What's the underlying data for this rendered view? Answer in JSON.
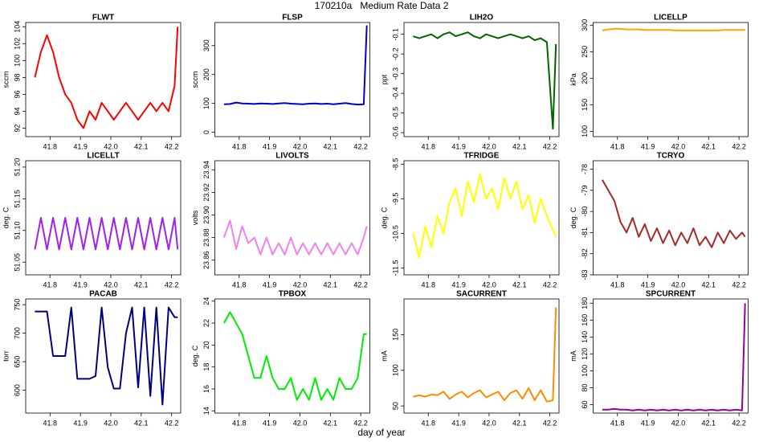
{
  "header": {
    "title": "170210a   Medium Rate Data 2"
  },
  "footer": {
    "xlabel": "day of year"
  },
  "chart_data": [
    {
      "type": "line",
      "title": "FLWT",
      "ylabel": "sccm",
      "color": "#ff0000",
      "x": [
        41.75,
        41.77,
        41.79,
        41.81,
        41.83,
        41.85,
        41.87,
        41.89,
        41.91,
        41.93,
        41.95,
        41.97,
        41.99,
        42.01,
        42.03,
        42.05,
        42.07,
        42.09,
        42.11,
        42.13,
        42.15,
        42.17,
        42.19,
        42.21,
        42.22
      ],
      "values": [
        98,
        101,
        103,
        101,
        98,
        96,
        95,
        93,
        92,
        94,
        93,
        95,
        94,
        93,
        94,
        95,
        94,
        93,
        94,
        95,
        94,
        95,
        94,
        97,
        104
      ],
      "xlim": [
        41.72,
        42.23
      ],
      "xticks": [
        41.8,
        41.9,
        {
          "value": 42,
          "label": "42.0"
        },
        42.1,
        42.2
      ],
      "ylim": [
        91,
        104.5
      ],
      "yticks": [
        92,
        94,
        96,
        98,
        100,
        102,
        104
      ]
    },
    {
      "type": "line",
      "title": "FLSP",
      "ylabel": "sccm",
      "color": "#0000cd",
      "x": [
        41.75,
        41.77,
        41.79,
        41.81,
        41.83,
        41.85,
        41.87,
        41.89,
        41.91,
        41.93,
        41.95,
        41.97,
        41.99,
        42.01,
        42.03,
        42.05,
        42.07,
        42.09,
        42.11,
        42.13,
        42.15,
        42.17,
        42.19,
        42.21,
        42.22
      ],
      "values": [
        97,
        98,
        103,
        100,
        99,
        98,
        100,
        99,
        98,
        100,
        101,
        99,
        98,
        97,
        99,
        100,
        98,
        99,
        97,
        99,
        101,
        98,
        96,
        97,
        370
      ],
      "xlim": [
        41.72,
        42.23
      ],
      "xticks": [
        41.8,
        41.9,
        {
          "value": 42,
          "label": "42.0"
        },
        42.1,
        42.2
      ],
      "ylim": [
        -15,
        380
      ],
      "yticks": [
        0,
        100,
        200,
        300
      ]
    },
    {
      "type": "line",
      "title": "LIH2O",
      "ylabel": "ppt",
      "color": "#006400",
      "x": [
        41.75,
        41.77,
        41.79,
        41.81,
        41.83,
        41.85,
        41.87,
        41.89,
        41.91,
        41.93,
        41.95,
        41.97,
        41.99,
        42.01,
        42.03,
        42.05,
        42.07,
        42.09,
        42.11,
        42.13,
        42.15,
        42.17,
        42.19,
        42.21,
        42.22
      ],
      "values": [
        -0.11,
        -0.12,
        -0.11,
        -0.1,
        -0.12,
        -0.1,
        -0.09,
        -0.11,
        -0.1,
        -0.09,
        -0.11,
        -0.12,
        -0.1,
        -0.11,
        -0.12,
        -0.11,
        -0.1,
        -0.11,
        -0.12,
        -0.11,
        -0.13,
        -0.12,
        -0.14,
        -0.58,
        -0.15
      ],
      "xlim": [
        41.72,
        42.23
      ],
      "xticks": [
        41.8,
        41.9,
        {
          "value": 42,
          "label": "42.0"
        },
        42.1,
        42.2
      ],
      "ylim": [
        -0.62,
        -0.04
      ],
      "yticks": [
        -0.1,
        -0.2,
        -0.3,
        -0.4,
        -0.5,
        -0.6
      ]
    },
    {
      "type": "line",
      "title": "LICELLP",
      "ylabel": "kPa",
      "color": "#ffa500",
      "x": [
        41.75,
        41.77,
        41.79,
        41.81,
        41.83,
        41.85,
        41.87,
        41.89,
        41.91,
        41.93,
        41.95,
        41.97,
        41.99,
        42.01,
        42.03,
        42.05,
        42.07,
        42.09,
        42.11,
        42.13,
        42.15,
        42.17,
        42.19,
        42.21,
        42.22
      ],
      "values": [
        290,
        292,
        293,
        293,
        292,
        292,
        292,
        291,
        291,
        291,
        291,
        291,
        290,
        290,
        290,
        290,
        290,
        290,
        290,
        290,
        291,
        291,
        291,
        291,
        291
      ],
      "xlim": [
        41.72,
        42.23
      ],
      "xticks": [
        41.8,
        41.9,
        {
          "value": 42,
          "label": "42.0"
        },
        42.1,
        42.2
      ],
      "ylim": [
        90,
        305
      ],
      "yticks": [
        100,
        150,
        200,
        250,
        300
      ]
    },
    {
      "type": "line",
      "title": "LICELLT",
      "ylabel": "deg. C",
      "color": "#a020f0",
      "x": [
        41.75,
        41.77,
        41.79,
        41.81,
        41.83,
        41.85,
        41.87,
        41.89,
        41.91,
        41.93,
        41.95,
        41.97,
        41.99,
        42.01,
        42.03,
        42.05,
        42.07,
        42.09,
        42.11,
        42.13,
        42.15,
        42.17,
        42.19,
        42.21,
        42.22
      ],
      "values": [
        51.07,
        51.12,
        51.07,
        51.12,
        51.07,
        51.12,
        51.07,
        51.12,
        51.07,
        51.12,
        51.07,
        51.12,
        51.07,
        51.12,
        51.07,
        51.12,
        51.07,
        51.12,
        51.07,
        51.12,
        51.07,
        51.12,
        51.07,
        51.12,
        51.07
      ],
      "xlim": [
        41.72,
        42.23
      ],
      "xticks": [
        41.8,
        41.9,
        {
          "value": 42,
          "label": "42.0"
        },
        42.1,
        42.2
      ],
      "ylim": [
        51.03,
        51.21
      ],
      "yticks": [
        {
          "value": 51.05,
          "label": "51.05"
        },
        {
          "value": 51.1,
          "label": "51.10"
        },
        {
          "value": 51.15,
          "label": "51.15"
        },
        {
          "value": 51.2,
          "label": "51.20"
        }
      ]
    },
    {
      "type": "line",
      "title": "LIVOLTS",
      "ylabel": "volts",
      "color": "#ee82ee",
      "x": [
        41.75,
        41.77,
        41.79,
        41.81,
        41.83,
        41.85,
        41.87,
        41.89,
        41.91,
        41.93,
        41.95,
        41.97,
        41.99,
        42.01,
        42.03,
        42.05,
        42.07,
        42.09,
        42.11,
        42.13,
        42.15,
        42.17,
        42.19,
        42.21,
        42.22
      ],
      "values": [
        23.88,
        23.895,
        23.87,
        23.89,
        23.875,
        23.88,
        23.865,
        23.88,
        23.865,
        23.875,
        23.865,
        23.88,
        23.865,
        23.875,
        23.865,
        23.875,
        23.865,
        23.875,
        23.865,
        23.875,
        23.865,
        23.875,
        23.865,
        23.88,
        23.89
      ],
      "xlim": [
        41.72,
        42.23
      ],
      "xticks": [
        41.8,
        41.9,
        {
          "value": 42,
          "label": "42.0"
        },
        42.1,
        42.2
      ],
      "ylim": [
        23.847,
        23.948
      ],
      "yticks": [
        23.86,
        23.88,
        {
          "value": 23.9,
          "label": "23.90"
        },
        23.92,
        23.94
      ]
    },
    {
      "type": "line",
      "title": "TFRIDGE",
      "ylabel": "deg. C",
      "color": "#ffff00",
      "x": [
        41.75,
        41.77,
        41.79,
        41.81,
        41.83,
        41.85,
        41.87,
        41.89,
        41.91,
        41.93,
        41.95,
        41.97,
        41.99,
        42.01,
        42.03,
        42.05,
        42.07,
        42.09,
        42.11,
        42.13,
        42.15,
        42.17,
        42.19,
        42.21,
        42.22
      ],
      "values": [
        -10.5,
        -11.2,
        -10.3,
        -10.9,
        -10.0,
        -10.5,
        -9.6,
        -9.2,
        -10.0,
        -9.0,
        -9.6,
        -8.8,
        -9.5,
        -9.2,
        -9.8,
        -8.9,
        -9.5,
        -9.0,
        -9.8,
        -9.4,
        -10.2,
        -9.5,
        -10.0,
        -10.4,
        -10.6
      ],
      "xlim": [
        41.72,
        42.23
      ],
      "xticks": [
        41.8,
        41.9,
        {
          "value": 42,
          "label": "42.0"
        },
        42.1,
        42.2
      ],
      "ylim": [
        -11.7,
        -8.4
      ],
      "yticks": [
        -8.5,
        -9.5,
        -10.5,
        -11.5
      ]
    },
    {
      "type": "line",
      "title": "TCRYO",
      "ylabel": "deg. C",
      "color": "#a52a2a",
      "x": [
        41.75,
        41.77,
        41.79,
        41.81,
        41.83,
        41.85,
        41.87,
        41.89,
        41.91,
        41.93,
        41.95,
        41.97,
        41.99,
        42.01,
        42.03,
        42.05,
        42.07,
        42.09,
        42.11,
        42.13,
        42.15,
        42.17,
        42.19,
        42.21,
        42.22
      ],
      "values": [
        -78.5,
        -79.0,
        -79.5,
        -80.5,
        -81.0,
        -80.3,
        -81.2,
        -80.6,
        -81.4,
        -80.8,
        -81.5,
        -80.9,
        -81.6,
        -81.0,
        -81.5,
        -80.8,
        -81.6,
        -81.2,
        -81.7,
        -81.0,
        -81.5,
        -80.9,
        -81.3,
        -81.0,
        -81.2
      ],
      "xlim": [
        41.72,
        42.23
      ],
      "xticks": [
        41.8,
        41.9,
        {
          "value": 42,
          "label": "42.0"
        },
        42.1,
        42.2
      ],
      "ylim": [
        -83,
        -77.6
      ],
      "yticks": [
        -78,
        -79,
        -80,
        -81,
        -82,
        -83
      ]
    },
    {
      "type": "line",
      "title": "PACAB",
      "ylabel": "torr",
      "color": "#000080",
      "x": [
        41.75,
        41.77,
        41.79,
        41.81,
        41.83,
        41.85,
        41.87,
        41.89,
        41.91,
        41.93,
        41.95,
        41.97,
        41.99,
        42.01,
        42.03,
        42.05,
        42.07,
        42.09,
        42.11,
        42.13,
        42.15,
        42.17,
        42.19,
        42.21,
        42.22
      ],
      "values": [
        738,
        738,
        738,
        660,
        660,
        660,
        745,
        620,
        620,
        620,
        625,
        745,
        640,
        603,
        603,
        700,
        745,
        605,
        745,
        590,
        745,
        575,
        745,
        728,
        728
      ],
      "xlim": [
        41.72,
        42.23
      ],
      "xticks": [
        41.8,
        41.9,
        {
          "value": 42,
          "label": "42.0"
        },
        42.1,
        42.2
      ],
      "ylim": [
        560,
        760
      ],
      "yticks": [
        600,
        650,
        700,
        750
      ]
    },
    {
      "type": "line",
      "title": "TPBOX",
      "ylabel": "deg. C",
      "color": "#00ee00",
      "x": [
        41.75,
        41.77,
        41.79,
        41.81,
        41.83,
        41.85,
        41.87,
        41.89,
        41.91,
        41.93,
        41.95,
        41.97,
        41.99,
        42.01,
        42.03,
        42.05,
        42.07,
        42.09,
        42.11,
        42.13,
        42.15,
        42.17,
        42.19,
        42.21,
        42.22
      ],
      "values": [
        22,
        23,
        22,
        21,
        19,
        17,
        17,
        19,
        17,
        16,
        16,
        17,
        15,
        16,
        15,
        17,
        15,
        16,
        15,
        17,
        16,
        16,
        17,
        21,
        21
      ],
      "xlim": [
        41.72,
        42.23
      ],
      "xticks": [
        41.8,
        41.9,
        {
          "value": 42,
          "label": "42.0"
        },
        42.1,
        42.2
      ],
      "ylim": [
        13.8,
        24.2
      ],
      "yticks": [
        14,
        16,
        18,
        20,
        22,
        24
      ]
    },
    {
      "type": "line",
      "title": "SACURRENT",
      "ylabel": "mA",
      "color": "#ff8c00",
      "x": [
        41.75,
        41.77,
        41.79,
        41.81,
        41.83,
        41.85,
        41.87,
        41.89,
        41.91,
        41.93,
        41.95,
        41.97,
        41.99,
        42.01,
        42.03,
        42.05,
        42.07,
        42.09,
        42.11,
        42.13,
        42.15,
        42.17,
        42.19,
        42.21,
        42.22
      ],
      "values": [
        63,
        65,
        63,
        66,
        65,
        70,
        60,
        66,
        70,
        62,
        68,
        72,
        62,
        66,
        70,
        58,
        68,
        72,
        60,
        75,
        58,
        72,
        56,
        58,
        188
      ],
      "xlim": [
        41.72,
        42.23
      ],
      "xticks": [
        41.8,
        41.9,
        {
          "value": 42,
          "label": "42.0"
        },
        42.1,
        42.2
      ],
      "ylim": [
        40,
        200
      ],
      "yticks": [
        50,
        100,
        150
      ]
    },
    {
      "type": "line",
      "title": "SPCURRENT",
      "ylabel": "mA",
      "color": "#990099",
      "x": [
        41.75,
        41.77,
        41.79,
        41.81,
        41.83,
        41.85,
        41.87,
        41.89,
        41.91,
        41.93,
        41.95,
        41.97,
        41.99,
        42.01,
        42.03,
        42.05,
        42.07,
        42.09,
        42.11,
        42.13,
        42.15,
        42.17,
        42.19,
        42.21,
        42.22
      ],
      "values": [
        54,
        54,
        55,
        54,
        54,
        53,
        54,
        53,
        54,
        53,
        54,
        53,
        54,
        53,
        54,
        53,
        54,
        53,
        54,
        53,
        54,
        53,
        54,
        53,
        180
      ],
      "xlim": [
        41.72,
        42.23
      ],
      "xticks": [
        41.8,
        41.9,
        {
          "value": 42,
          "label": "42.0"
        },
        42.1,
        42.2
      ],
      "ylim": [
        50,
        185
      ],
      "yticks": [
        60,
        80,
        100,
        120,
        140,
        160,
        180
      ]
    }
  ]
}
